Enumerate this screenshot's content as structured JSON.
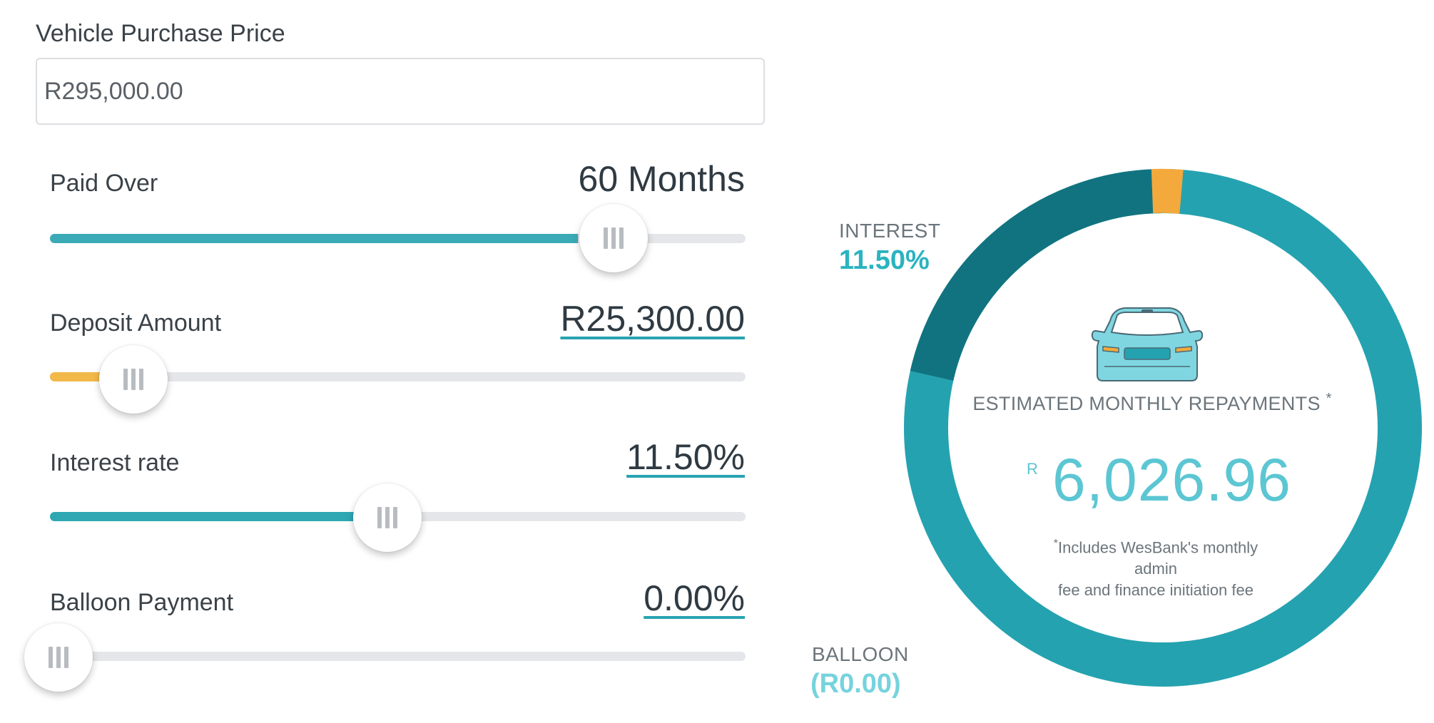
{
  "purchase_price": {
    "label": "Vehicle Purchase Price",
    "value": "R295,000.00"
  },
  "sliders": [
    {
      "label": "Paid Over",
      "value": "60 Months",
      "level": 0.76,
      "color": "#3aaab6"
    },
    {
      "label": "Deposit Amount",
      "value": "R25,300.00",
      "level": 0.08,
      "color": "#f2b84a"
    },
    {
      "label": "Interest rate",
      "value": "11.50%",
      "level": 0.44,
      "color": "#2ea7b3"
    },
    {
      "label": "Balloon Payment",
      "value": "0.00%",
      "level": 0.0,
      "color": "#2ea7b3"
    }
  ],
  "donut": {
    "interest_label": "INTEREST",
    "interest_value": "11.50%",
    "balloon_label": "BALLOON",
    "balloon_value": "(R0.00)",
    "title": "ESTIMATED MONTHLY REPAYMENTS",
    "title_mark": "*",
    "currency": "R",
    "amount": "6,026.96",
    "note_mark": "*",
    "note_lines": [
      "Includes WesBank's monthly",
      "admin",
      "fee and finance initiation fee"
    ],
    "colors": {
      "principal": "#25a2b0",
      "interest": "#127380",
      "fee": "#f3a93c",
      "accent_text": "#2bb3c0",
      "amount_text": "#5cc6d3"
    }
  }
}
